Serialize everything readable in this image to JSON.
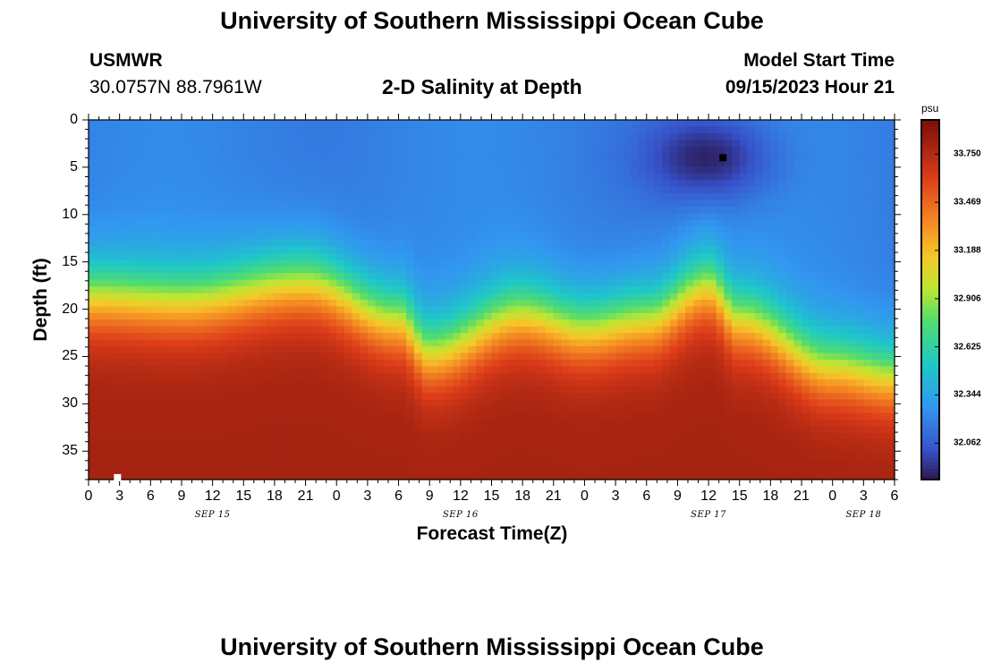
{
  "header": {
    "title": "University of Southern Mississippi Ocean Cube",
    "station": "USMWR",
    "coords": "30.0757N  88.7961W",
    "subtitle": "2-D Salinity at Depth",
    "model_label": "Model Start Time",
    "model_time": "09/15/2023 Hour 21"
  },
  "footer": {
    "title": "University of Southern Mississippi Ocean Cube"
  },
  "chart_data": {
    "type": "heatmap",
    "title": "2-D Salinity at Depth",
    "xlabel": "Forecast Time(Z)",
    "ylabel": "Depth (ft)",
    "colorbar_unit": "psu",
    "ylim": [
      0,
      38
    ],
    "y_ticks": [
      0,
      5,
      10,
      15,
      20,
      25,
      30,
      35
    ],
    "x_ticks_hours": [
      0,
      3,
      6,
      9,
      12,
      15,
      18,
      21,
      24,
      27,
      30,
      33,
      36,
      39,
      42,
      45,
      48,
      51,
      54,
      57,
      60,
      63,
      66,
      69,
      72,
      75,
      78
    ],
    "x_tick_labels": [
      "0",
      "3",
      "6",
      "9",
      "12",
      "15",
      "18",
      "21",
      "0",
      "3",
      "6",
      "9",
      "12",
      "15",
      "18",
      "21",
      "0",
      "3",
      "6",
      "9",
      "12",
      "15",
      "18",
      "21",
      "0",
      "3",
      "6"
    ],
    "date_labels": [
      {
        "hour": 12,
        "label": "SEP 15"
      },
      {
        "hour": 36,
        "label": "SEP 16"
      },
      {
        "hour": 60,
        "label": "SEP 17"
      },
      {
        "hour": 75,
        "label": "SEP 18"
      }
    ],
    "colorbar_ticks": [
      "33.750",
      "33.469",
      "33.188",
      "32.906",
      "32.625",
      "32.344",
      "32.062"
    ],
    "colorbar_range": [
      31.85,
      33.95
    ],
    "surface_salinity": 32.2,
    "bottom_salinity": 33.8,
    "halocline_depth_ft": [
      {
        "hour": 0,
        "depth": 18.5
      },
      {
        "hour": 9,
        "depth": 19.0
      },
      {
        "hour": 21,
        "depth": 17.0
      },
      {
        "hour": 30,
        "depth": 21.0
      },
      {
        "hour": 33,
        "depth": 24.5
      },
      {
        "hour": 42,
        "depth": 20.5
      },
      {
        "hour": 48,
        "depth": 22.0
      },
      {
        "hour": 54,
        "depth": 21.0
      },
      {
        "hour": 60,
        "depth": 17.5
      },
      {
        "hour": 63,
        "depth": 21.0
      },
      {
        "hour": 72,
        "depth": 26.0
      },
      {
        "hour": 78,
        "depth": 27.0
      }
    ],
    "fresh_anomaly": {
      "hour": 60,
      "depth": 4,
      "min_salinity": 31.9
    },
    "markers": [
      {
        "hour": 61.4,
        "depth": 4,
        "color": "#000000"
      },
      {
        "hour": 2.8,
        "depth": 37.8,
        "color": "#ffffff"
      }
    ]
  }
}
